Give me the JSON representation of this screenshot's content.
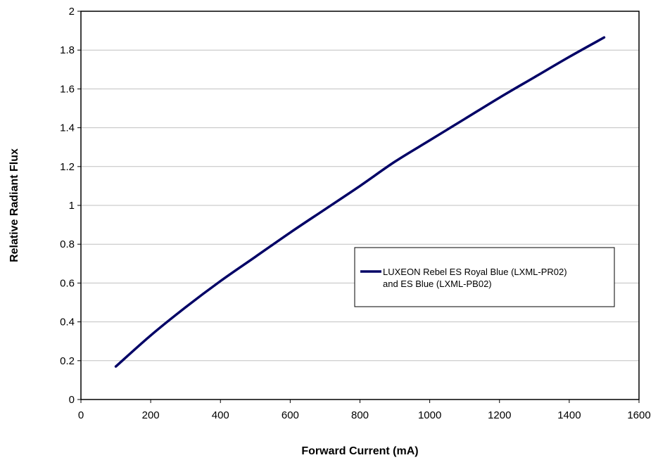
{
  "chart_data": {
    "type": "line",
    "title": "",
    "xlabel": "Forward Current (mA)",
    "ylabel": "Relative Radiant Flux",
    "xlim": [
      0,
      1600
    ],
    "ylim": [
      0,
      2
    ],
    "xticks": [
      0,
      200,
      400,
      600,
      800,
      1000,
      1200,
      1400,
      1600
    ],
    "yticks": [
      0,
      0.2,
      0.4,
      0.6,
      0.8,
      1,
      1.2,
      1.4,
      1.6,
      1.8,
      2
    ],
    "grid": true,
    "legend_position": "right",
    "line_color": "#000066",
    "series": [
      {
        "name": "LUXEON Rebel ES Royal Blue (LXML-PR02) and ES Blue (LXML-PB02)",
        "legend_lines": [
          "LUXEON Rebel ES Royal Blue (LXML-PR02)",
          "and ES Blue (LXML-PB02)"
        ],
        "x": [
          100,
          200,
          300,
          400,
          500,
          600,
          700,
          800,
          900,
          1000,
          1100,
          1200,
          1300,
          1400,
          1500
        ],
        "y": [
          0.17,
          0.33,
          0.475,
          0.61,
          0.735,
          0.86,
          0.98,
          1.1,
          1.225,
          1.335,
          1.445,
          1.555,
          1.66,
          1.765,
          1.865
        ]
      }
    ]
  }
}
